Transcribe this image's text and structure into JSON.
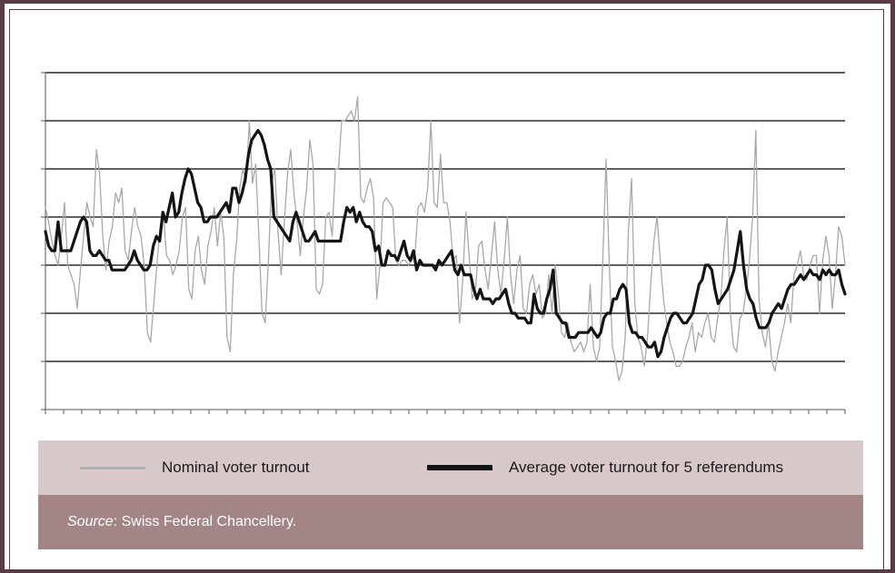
{
  "chart_data": {
    "type": "line",
    "title": "",
    "xlabel": "",
    "ylabel": "",
    "ylim": [
      0,
      7
    ],
    "gridlines_y": [
      1,
      2,
      3,
      4,
      5,
      6,
      7
    ],
    "grid": true,
    "x_tick_count": 45,
    "series": [
      {
        "name": "Nominal voter turnout",
        "color": "#a8a8a8",
        "width": 1.3,
        "values": [
          4.2,
          3.9,
          3.5,
          3.2,
          3.0,
          3.6,
          4.3,
          3.0,
          2.8,
          2.6,
          2.1,
          2.9,
          3.6,
          4.3,
          4.0,
          3.8,
          5.4,
          4.9,
          3.6,
          2.9,
          3.5,
          3.8,
          4.5,
          4.3,
          4.6,
          3.3,
          3.1,
          3.7,
          4.2,
          3.8,
          3.6,
          3.0,
          1.6,
          1.4,
          2.2,
          3.0,
          3.8,
          4.1,
          3.2,
          3.1,
          2.8,
          3.0,
          3.3,
          4.0,
          4.2,
          2.5,
          2.3,
          3.3,
          3.6,
          2.9,
          2.6,
          3.4,
          3.7,
          4.2,
          3.4,
          4.1,
          3.6,
          1.5,
          1.2,
          2.8,
          3.5,
          4.6,
          5.0,
          4.7,
          6.0,
          4.7,
          5.1,
          3.6,
          2.0,
          1.8,
          3.1,
          4.7,
          5.0,
          3.7,
          2.8,
          3.9,
          4.9,
          5.4,
          4.5,
          3.9,
          3.2,
          4.0,
          4.6,
          5.6,
          5.1,
          2.5,
          2.4,
          2.6,
          4.0,
          4.1,
          3.6,
          5.0,
          5.0,
          6.0,
          6.0,
          6.1,
          6.2,
          6.0,
          6.5,
          4.4,
          4.3,
          4.6,
          4.8,
          4.4,
          2.3,
          3.0,
          4.3,
          4.4,
          4.3,
          4.2,
          3.1,
          3.0,
          3.1,
          3.1,
          3.0,
          3.1,
          3.2,
          4.2,
          4.3,
          4.1,
          4.6,
          6.0,
          4.3,
          4.2,
          5.3,
          4.3,
          4.3,
          3.9,
          3.1,
          3.2,
          1.8,
          2.7,
          4.1,
          3.2,
          2.3,
          2.5,
          3.4,
          3.5,
          2.9,
          2.5,
          3.2,
          3.9,
          2.9,
          2.4,
          3.1,
          4.0,
          2.8,
          2.2,
          2.9,
          3.2,
          2.1,
          2.0,
          2.6,
          2.8,
          2.4,
          2.6,
          1.9,
          2.0,
          2.8,
          2.0,
          3.0,
          2.4,
          1.6,
          1.5,
          1.8,
          1.4,
          1.2,
          1.3,
          1.4,
          1.2,
          1.4,
          2.6,
          1.3,
          1.0,
          1.3,
          3.2,
          5.2,
          3.0,
          1.3,
          1.0,
          0.6,
          0.8,
          1.5,
          3.7,
          4.8,
          2.2,
          1.5,
          1.3,
          0.9,
          1.5,
          2.6,
          3.5,
          4.0,
          3.1,
          2.3,
          1.8,
          1.4,
          1.2,
          0.9,
          0.9,
          1.0,
          1.3,
          1.5,
          1.8,
          1.2,
          1.6,
          1.5,
          1.8,
          2.0,
          1.5,
          1.4,
          1.9,
          2.3,
          3.3,
          4.0,
          2.0,
          1.3,
          1.2,
          1.9,
          2.0,
          2.5,
          3.1,
          4.0,
          5.8,
          2.3,
          1.6,
          1.3,
          1.8,
          1.0,
          0.8,
          1.2,
          1.5,
          1.8,
          2.2,
          1.8,
          2.8,
          3.0,
          3.3,
          2.8,
          2.7,
          3.0,
          3.2,
          3.2,
          2.0,
          3.1,
          3.6,
          3.2,
          2.1,
          2.8,
          3.8,
          3.6,
          3.0
        ]
      },
      {
        "name": "Average voter turnout for 5 referendums",
        "color": "#141414",
        "width": 3.2,
        "values": [
          3.7,
          3.4,
          3.3,
          3.3,
          3.9,
          3.3,
          3.3,
          3.3,
          3.3,
          3.5,
          3.7,
          3.9,
          4.0,
          3.9,
          3.3,
          3.2,
          3.2,
          3.3,
          3.2,
          3.1,
          3.1,
          2.9,
          2.9,
          2.9,
          2.9,
          2.9,
          3.0,
          3.1,
          3.3,
          3.1,
          3.0,
          2.9,
          2.9,
          3.0,
          3.4,
          3.6,
          3.5,
          4.1,
          3.9,
          4.2,
          4.5,
          4.0,
          4.1,
          4.5,
          4.8,
          5.0,
          4.9,
          4.6,
          4.3,
          4.2,
          3.9,
          3.9,
          4.0,
          4.0,
          4.0,
          4.1,
          4.2,
          4.3,
          4.1,
          4.6,
          4.6,
          4.3,
          4.5,
          4.8,
          5.3,
          5.6,
          5.7,
          5.8,
          5.7,
          5.5,
          5.2,
          5.0,
          4.0,
          3.9,
          3.8,
          3.7,
          3.6,
          3.5,
          3.9,
          4.1,
          3.9,
          3.7,
          3.5,
          3.5,
          3.6,
          3.7,
          3.5,
          3.5,
          3.5,
          3.5,
          3.5,
          3.5,
          3.5,
          3.5,
          3.9,
          4.2,
          4.1,
          4.2,
          3.9,
          4.1,
          3.9,
          3.8,
          3.8,
          3.7,
          3.3,
          3.4,
          3.0,
          3.0,
          3.3,
          3.2,
          3.2,
          3.1,
          3.3,
          3.5,
          3.2,
          3.1,
          3.3,
          2.9,
          3.1,
          3.0,
          3.0,
          3.0,
          3.0,
          2.9,
          3.1,
          3.0,
          3.1,
          3.2,
          3.3,
          2.9,
          2.8,
          3.0,
          2.8,
          2.8,
          2.8,
          2.5,
          2.3,
          2.5,
          2.3,
          2.3,
          2.3,
          2.2,
          2.3,
          2.3,
          2.4,
          2.5,
          2.2,
          2.0,
          2.0,
          1.9,
          1.9,
          1.9,
          1.8,
          1.8,
          2.4,
          2.1,
          2.0,
          2.0,
          2.3,
          2.5,
          2.9,
          2.0,
          1.9,
          1.8,
          1.8,
          1.5,
          1.5,
          1.5,
          1.6,
          1.6,
          1.6,
          1.6,
          1.7,
          1.6,
          1.5,
          1.6,
          1.9,
          2.0,
          2.0,
          2.3,
          2.3,
          2.5,
          2.6,
          2.5,
          1.8,
          1.6,
          1.6,
          1.5,
          1.5,
          1.4,
          1.3,
          1.3,
          1.4,
          1.1,
          1.2,
          1.5,
          1.7,
          1.9,
          2.0,
          2.0,
          1.9,
          1.8,
          1.8,
          1.9,
          2.0,
          2.3,
          2.6,
          2.7,
          3.0,
          3.0,
          2.9,
          2.5,
          2.2,
          2.3,
          2.4,
          2.5,
          2.7,
          2.9,
          3.3,
          3.7,
          3.0,
          2.5,
          2.3,
          2.2,
          1.9,
          1.7,
          1.7,
          1.7,
          1.8,
          2.0,
          2.1,
          2.2,
          2.1,
          2.3,
          2.5,
          2.6,
          2.6,
          2.7,
          2.8,
          2.7,
          2.8,
          2.9,
          2.8,
          2.8,
          2.7,
          2.9,
          2.8,
          2.9,
          2.8,
          2.8,
          2.9,
          2.6,
          2.4
        ]
      }
    ]
  },
  "legend": {
    "nominal_label": "Nominal voter turnout",
    "average_label": "Average voter turnout for 5 referendums",
    "nominal_color": "#b0b0b0",
    "average_color": "#141414"
  },
  "source": {
    "label": "Source",
    "text": ": Swiss Federal Chancellery."
  }
}
